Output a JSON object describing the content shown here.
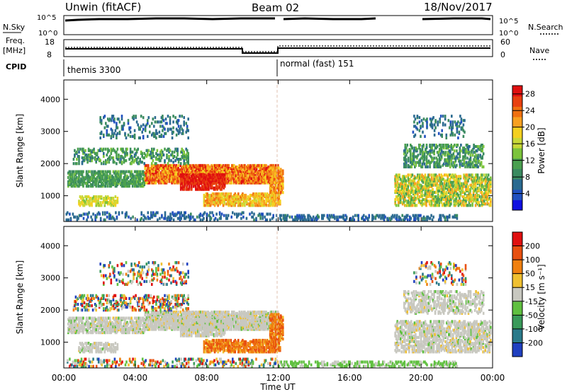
{
  "header": {
    "title": "Unwin (fitACF)",
    "beam": "Beam 02",
    "date": "18/Nov/2017"
  },
  "status_panels": {
    "noise_left_label": "N.Sky",
    "noise_left_ticks": [
      "10^5",
      "10^0"
    ],
    "noise_right_label": "N.Search",
    "noise_right_ticks": [
      "10^5",
      "10^0"
    ],
    "freq_label_1": "Freq.",
    "freq_label_2": "[MHz]",
    "freq_left_ticks": [
      "18",
      "8"
    ],
    "nave_label": "Nave",
    "nave_right_ticks": [
      "60",
      "0"
    ],
    "cpid_label": "CPID",
    "cpid_segments": [
      {
        "text": "themis 3300",
        "start_hour": 0
      },
      {
        "text": "normal (fast) 151",
        "start_hour": 12
      }
    ]
  },
  "chart_data": [
    {
      "type": "heatmap",
      "name": "power",
      "xlabel": "Time UT",
      "ylabel": "Slant Range [km]",
      "xlim": [
        0,
        24
      ],
      "ylim": [
        200,
        4600
      ],
      "x_tick_labels": [
        "00:00",
        "04:00",
        "08:00",
        "12:00",
        "16:00",
        "20:00",
        "00:00"
      ],
      "x_tick_values": [
        0,
        4,
        8,
        12,
        16,
        20,
        24
      ],
      "y_tick_values": [
        1000,
        2000,
        3000,
        4000
      ],
      "y_tick_labels": [
        "1000",
        "2000",
        "3000",
        "4000"
      ],
      "colorbar": {
        "label": "Power [dB]",
        "tick_labels": [
          "4",
          "8",
          "12",
          "16",
          "20",
          "24",
          "28"
        ],
        "tick_values": [
          4,
          8,
          12,
          16,
          20,
          24,
          28
        ],
        "range": [
          0,
          30
        ],
        "colors": [
          "#1010e0",
          "#2050c0",
          "#2a6a90",
          "#3a8a60",
          "#4aa050",
          "#7cc43c",
          "#c8d838",
          "#f4d020",
          "#f8a020",
          "#f07010",
          "#e84010",
          "#e01010"
        ]
      }
    },
    {
      "type": "heatmap",
      "name": "velocity",
      "xlabel": "Time UT",
      "ylabel": "Slant Range [km]",
      "xlim": [
        0,
        24
      ],
      "ylim": [
        200,
        4600
      ],
      "x_tick_labels": [
        "00:00",
        "04:00",
        "08:00",
        "12:00",
        "16:00",
        "20:00",
        "00:00"
      ],
      "x_tick_values": [
        0,
        4,
        8,
        12,
        16,
        20,
        24
      ],
      "y_tick_values": [
        1000,
        2000,
        3000,
        4000
      ],
      "y_tick_labels": [
        "1000",
        "2000",
        "3000",
        "4000"
      ],
      "colorbar": {
        "label": "Velocity [m s⁻¹]",
        "tick_labels": [
          "200",
          "100",
          "50",
          "15",
          "-15",
          "-50",
          "-100",
          "-200"
        ],
        "colors": [
          "#2040c0",
          "#2a7a8a",
          "#3a9a5a",
          "#60c040",
          "#c8c8c0",
          "#f0c030",
          "#f08010",
          "#e85010",
          "#e01010"
        ]
      }
    }
  ]
}
